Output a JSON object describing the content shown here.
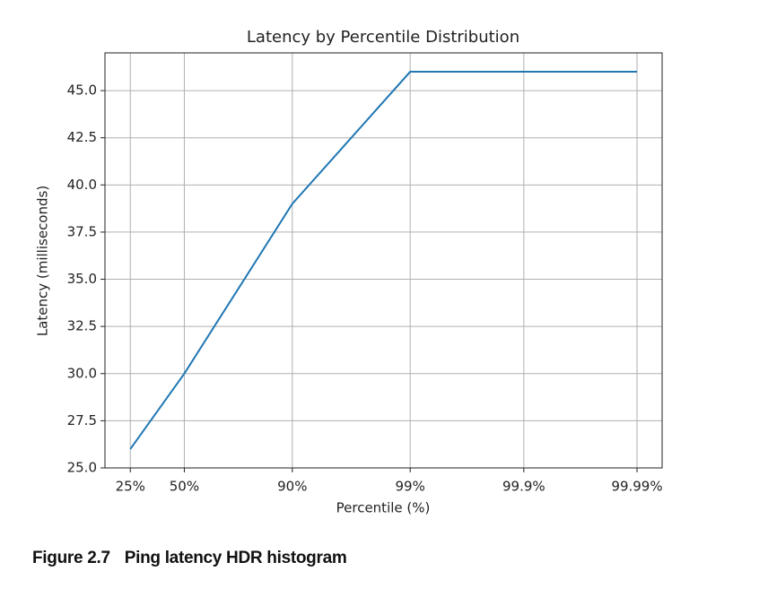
{
  "chart_data": {
    "type": "line",
    "title": "Latency by Percentile Distribution",
    "x_label": "Percentile (%)",
    "y_label": "Latency (milliseconds)",
    "x": [
      0.25,
      0.5,
      0.9,
      0.99,
      0.999,
      0.9999
    ],
    "series": [
      {
        "color": "#1f77b4",
        "values": [
          26,
          30,
          39,
          46,
          46,
          46
        ]
      }
    ],
    "xscale": "logit",
    "xlim": [
      0.166,
      0.99994
    ],
    "xticks": [
      {
        "value": 0.25,
        "label": "25%"
      },
      {
        "value": 0.5,
        "label": "50%"
      },
      {
        "value": 0.9,
        "label": "90%"
      },
      {
        "value": 0.99,
        "label": "99%"
      },
      {
        "value": 0.999,
        "label": "99.9%"
      },
      {
        "value": 0.9999,
        "label": "99.99%"
      }
    ],
    "ylim": [
      25,
      47
    ],
    "yticks": [
      {
        "value": 25,
        "label": "25.0"
      },
      {
        "value": 27.5,
        "label": "27.5"
      },
      {
        "value": 30,
        "label": "30.0"
      },
      {
        "value": 32.5,
        "label": "32.5"
      },
      {
        "value": 35,
        "label": "35.0"
      },
      {
        "value": 37.5,
        "label": "37.5"
      },
      {
        "value": 40,
        "label": "40.0"
      },
      {
        "value": 42.5,
        "label": "42.5"
      },
      {
        "value": 45,
        "label": "45.0"
      }
    ],
    "grid": true
  },
  "figure": {
    "label": "Figure 2.7",
    "text": "Ping latency HDR histogram"
  }
}
